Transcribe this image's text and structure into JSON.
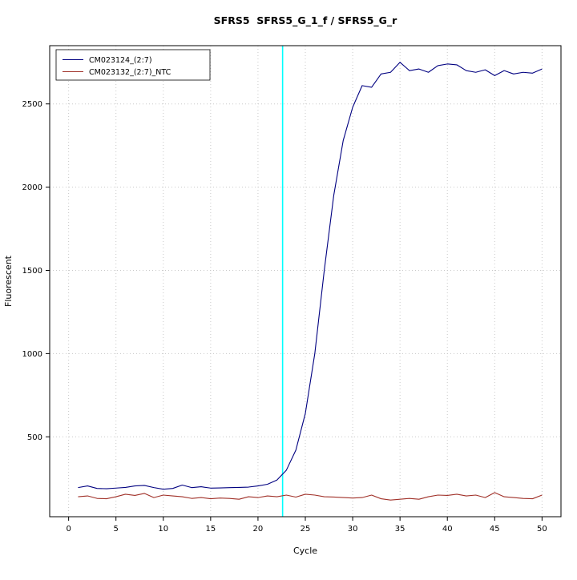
{
  "chart_data": {
    "type": "line",
    "title": "SFRS5  SFRS5_G_1_f / SFRS5_G_r",
    "xlabel": "Cycle",
    "ylabel": "Fluorescent",
    "xlim": [
      -2,
      52
    ],
    "ylim": [
      20,
      2850
    ],
    "x_ticks": [
      0,
      5,
      10,
      15,
      20,
      25,
      30,
      35,
      40,
      45,
      50
    ],
    "y_ticks": [
      500,
      1000,
      1500,
      2000,
      2500
    ],
    "grid": {
      "color": "#c8c8c8",
      "style": "dotted"
    },
    "x": [
      1,
      2,
      3,
      4,
      5,
      6,
      7,
      8,
      9,
      10,
      11,
      12,
      13,
      14,
      15,
      16,
      17,
      18,
      19,
      20,
      21,
      22,
      23,
      24,
      25,
      26,
      27,
      28,
      29,
      30,
      31,
      32,
      33,
      34,
      35,
      36,
      37,
      38,
      39,
      40,
      41,
      42,
      43,
      44,
      45,
      46,
      47,
      48,
      49,
      50
    ],
    "series": [
      {
        "name": "CM023124_(2:7)",
        "color": "#000080",
        "values": [
          195,
          205,
          190,
          188,
          192,
          196,
          205,
          208,
          195,
          185,
          190,
          210,
          195,
          200,
          192,
          193,
          195,
          196,
          198,
          205,
          215,
          240,
          300,
          420,
          640,
          1000,
          1500,
          1950,
          2280,
          2480,
          2610,
          2600,
          2680,
          2690,
          2750,
          2700,
          2710,
          2690,
          2730,
          2740,
          2735,
          2700,
          2690,
          2705,
          2670,
          2700,
          2680,
          2690,
          2685,
          2710
        ]
      },
      {
        "name": "CM023132_(2:7)_NTC",
        "color": "#a03028",
        "values": [
          140,
          145,
          130,
          128,
          140,
          155,
          148,
          160,
          135,
          150,
          145,
          140,
          130,
          135,
          128,
          132,
          130,
          125,
          140,
          135,
          145,
          140,
          150,
          138,
          155,
          150,
          140,
          138,
          135,
          132,
          135,
          150,
          128,
          120,
          125,
          130,
          125,
          140,
          150,
          148,
          155,
          145,
          150,
          135,
          165,
          140,
          135,
          130,
          128,
          150
        ]
      }
    ],
    "threshold_line": {
      "x": 22.6,
      "color": "#00ffff"
    }
  }
}
